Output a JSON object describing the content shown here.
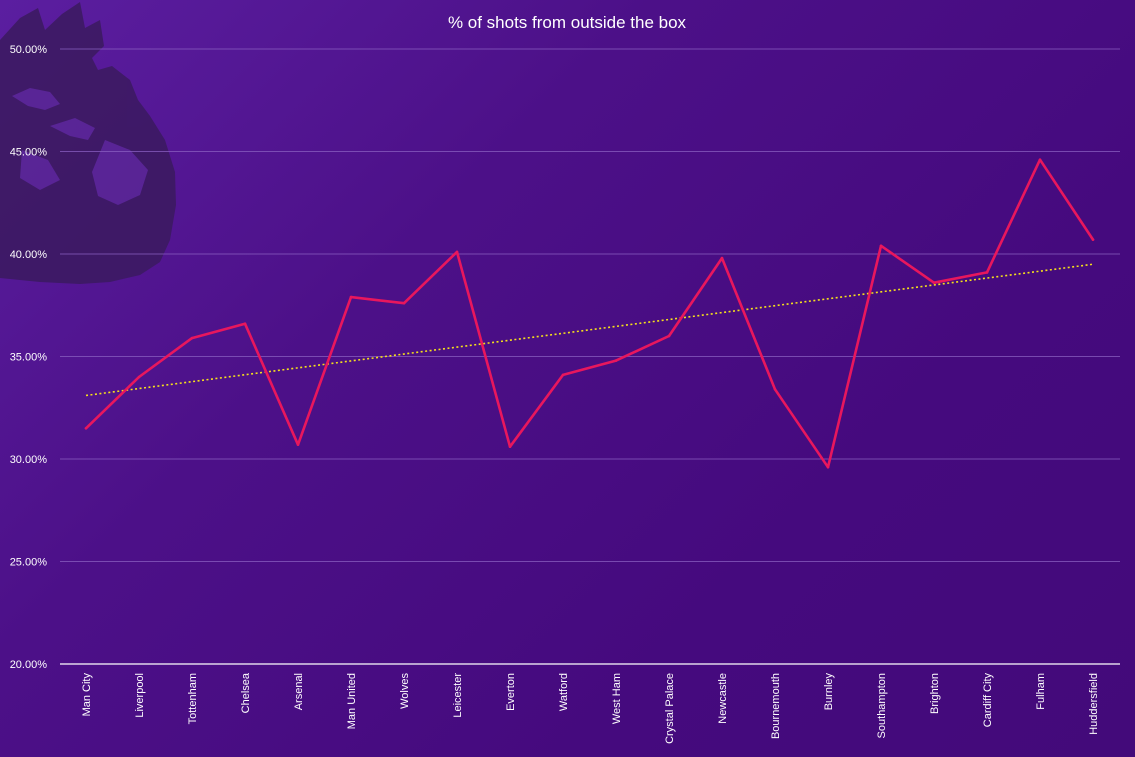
{
  "chart_data": {
    "type": "line",
    "title": "% of shots from outside the box",
    "xlabel": "",
    "ylabel": "",
    "categories": [
      "Man City",
      "Liverpool",
      "Tottenham",
      "Chelsea",
      "Arsenal",
      "Man United",
      "Wolves",
      "Leicester",
      "Everton",
      "Watford",
      "West Ham",
      "Crystal Palace",
      "Newcastle",
      "Bournemouth",
      "Burnley",
      "Southampton",
      "Brighton",
      "Cardiff City",
      "Fulham",
      "Huddersfield"
    ],
    "series": [
      {
        "values": [
          31.5,
          34.0,
          35.9,
          36.6,
          30.7,
          37.9,
          37.6,
          40.1,
          30.6,
          34.1,
          34.8,
          36.0,
          39.8,
          33.4,
          29.6,
          40.4,
          38.6,
          39.1,
          44.6,
          40.7
        ]
      }
    ],
    "trendline": {
      "type": "linear",
      "start": 33.1,
      "end": 39.5
    },
    "ylim": [
      20,
      50
    ],
    "yticks": [
      "20.00%",
      "25.00%",
      "30.00%",
      "35.00%",
      "40.00%",
      "45.00%",
      "50.00%"
    ],
    "grid": true,
    "legend": "none",
    "colors": {
      "line": "#e8175d",
      "trendline": "#f5e11a",
      "grid": "#8a5fc0",
      "axis": "#ffffff",
      "logo": "#3a1a5e"
    },
    "watermark": "premier-league-lion-logo"
  }
}
